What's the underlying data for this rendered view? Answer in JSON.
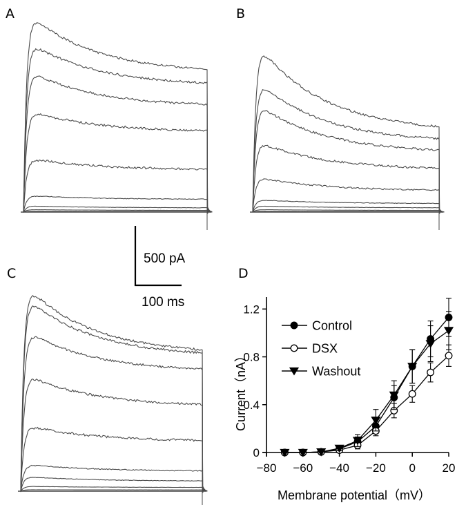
{
  "panels": {
    "a": "A",
    "b": "B",
    "c": "C",
    "d": "D"
  },
  "scale_bar": {
    "current_label": "500 pA",
    "time_label": "100 ms"
  },
  "colors": {
    "trace": "#4a4a4a",
    "axis": "#000000",
    "marker_fill": "#000000",
    "marker_open": "#ffffff"
  },
  "traces": {
    "A": {
      "peaks": [
        0.965,
        0.825,
        0.685,
        0.49,
        0.26,
        0.08,
        0.03,
        0.012,
        0.004
      ],
      "ends": [
        0.66,
        0.6,
        0.5,
        0.38,
        0.2,
        0.06,
        0.02,
        0.008,
        0.003
      ]
    },
    "B": {
      "peaks": [
        0.83,
        0.645,
        0.53,
        0.345,
        0.17,
        0.06,
        0.03,
        0.012,
        0.004
      ],
      "ends": [
        0.38,
        0.33,
        0.28,
        0.2,
        0.1,
        0.04,
        0.02,
        0.008,
        0.003
      ]
    },
    "C": {
      "peaks": [
        0.85,
        0.8,
        0.66,
        0.48,
        0.27,
        0.11,
        0.06,
        0.02,
        0.006
      ],
      "ends": [
        0.55,
        0.54,
        0.48,
        0.34,
        0.2,
        0.08,
        0.04,
        0.015,
        0.005
      ]
    }
  },
  "chart_data": {
    "type": "line",
    "xlabel": "Membrane potential（mV）",
    "ylabel": "Current（nA）",
    "xlim": [
      -80,
      20
    ],
    "ylim": [
      0,
      1.3
    ],
    "xticks": [
      -80,
      -60,
      -40,
      -20,
      0,
      20
    ],
    "yticks": [
      0,
      0.4,
      0.8,
      1.2
    ],
    "xtick_labels": [
      "−80",
      "−60",
      "−40",
      "−20",
      "0",
      "20"
    ],
    "ytick_labels": [
      "0",
      "0.4",
      "0.8",
      "1.2"
    ],
    "x": [
      -70,
      -60,
      -50,
      -40,
      -30,
      -20,
      -10,
      0,
      10,
      20
    ],
    "grid": false,
    "legend_position": "top-left",
    "series": [
      {
        "name": "Control",
        "marker": "filled-circle",
        "values": [
          0,
          0,
          0.005,
          0.03,
          0.09,
          0.22,
          0.46,
          0.72,
          0.95,
          1.13
        ],
        "errors": [
          0,
          0,
          0.005,
          0.02,
          0.04,
          0.06,
          0.1,
          0.14,
          0.15,
          0.16
        ]
      },
      {
        "name": "DSX",
        "marker": "open-circle",
        "values": [
          0,
          0,
          0.005,
          0.02,
          0.06,
          0.18,
          0.35,
          0.49,
          0.67,
          0.81
        ],
        "errors": [
          0,
          0,
          0.005,
          0.015,
          0.03,
          0.04,
          0.06,
          0.07,
          0.08,
          0.09
        ]
      },
      {
        "name": "Washout",
        "marker": "filled-triangle-down",
        "values": [
          0,
          0,
          0.005,
          0.035,
          0.1,
          0.27,
          0.48,
          0.72,
          0.91,
          1.02
        ],
        "errors": [
          0,
          0,
          0.005,
          0.02,
          0.05,
          0.09,
          0.12,
          0.14,
          0.15,
          0.16
        ]
      }
    ]
  }
}
